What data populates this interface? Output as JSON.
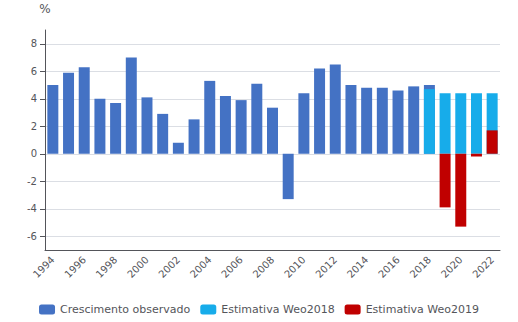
{
  "chart_data": {
    "type": "bar",
    "ylabel": "%",
    "categories": [
      1994,
      null,
      1996,
      null,
      1998,
      null,
      2000,
      null,
      2002,
      null,
      2004,
      null,
      2006,
      null,
      2008,
      null,
      2010,
      null,
      2012,
      null,
      2014,
      null,
      2016,
      null,
      2018,
      null,
      2020,
      null,
      2022
    ],
    "series": [
      {
        "name": "Crescimento observado",
        "color": "#4472C4",
        "values": [
          5.0,
          5.9,
          6.3,
          4.0,
          3.7,
          7.0,
          4.1,
          2.9,
          0.8,
          2.5,
          5.3,
          4.2,
          3.9,
          5.1,
          3.35,
          -3.3,
          4.4,
          6.2,
          6.5,
          5.0,
          4.8,
          4.8,
          4.6,
          4.9,
          5.0,
          null,
          null,
          null,
          null
        ]
      },
      {
        "name": "Estimativa Weo2018",
        "color": "#17ACEA",
        "values": [
          null,
          null,
          null,
          null,
          null,
          null,
          null,
          null,
          null,
          null,
          null,
          null,
          null,
          null,
          null,
          null,
          null,
          null,
          null,
          null,
          null,
          null,
          null,
          null,
          4.7,
          4.4,
          4.4,
          4.4,
          4.4
        ]
      },
      {
        "name": "Estimativa Weo2019",
        "color": "#C00000",
        "values": [
          null,
          null,
          null,
          null,
          null,
          null,
          null,
          null,
          null,
          null,
          null,
          null,
          null,
          null,
          null,
          null,
          null,
          null,
          null,
          null,
          null,
          null,
          null,
          null,
          null,
          -3.9,
          -5.3,
          -0.2,
          1.7
        ]
      }
    ],
    "ylim": [
      -7,
      9
    ],
    "yticks": [
      -6,
      -4,
      -2,
      0,
      2,
      4,
      6,
      8
    ],
    "grid": true,
    "legend": "bottom"
  }
}
